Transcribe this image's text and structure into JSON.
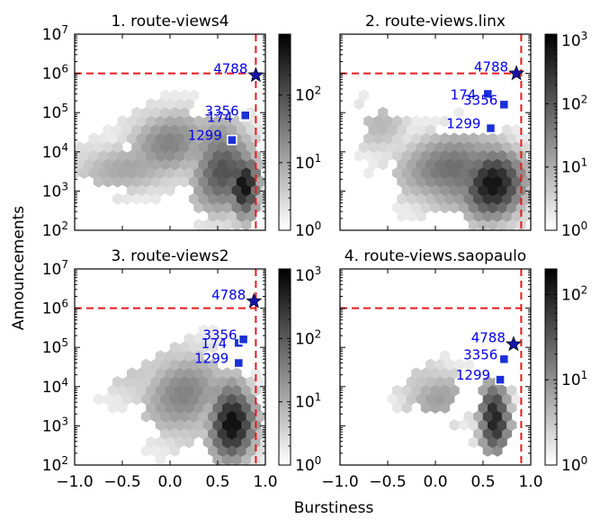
{
  "figure": {
    "ylabel": "Announcements",
    "xlabel": "Burstiness"
  },
  "chart_data": [
    {
      "type": "heatmap",
      "title": "1. route-views4",
      "xlim": [
        -1.0,
        1.0
      ],
      "ylim_log10": [
        2,
        7
      ],
      "x_ticks": [
        "−1.0",
        "−0.5",
        "0.0",
        "0.5",
        "1.0"
      ],
      "y_ticks": [
        "10^2",
        "10^3",
        "10^4",
        "10^5",
        "10^6",
        "10^7"
      ],
      "x_ticks_shown": false,
      "y_ticks_shown": true,
      "colorbar": {
        "max_log10": 2.9,
        "ticks": [
          "10^0",
          "10^1",
          "10^2"
        ]
      },
      "reference_lines": {
        "x": 0.9,
        "y": 1000000
      },
      "points": [
        {
          "label": "4788",
          "marker": "star",
          "x": 0.9,
          "y": 900000
        },
        {
          "label": "174",
          "marker": "square",
          "x": 0.78,
          "y": 80000
        },
        {
          "label": "3356",
          "marker": "square",
          "x": 0.79,
          "y": 85000
        },
        {
          "label": "1299",
          "marker": "square",
          "x": 0.65,
          "y": 20000
        }
      ],
      "hexbin_clusters": [
        {
          "cx": -0.4,
          "cy": 3.6,
          "sx": 0.6,
          "sy": 0.55,
          "peak": 0.9
        },
        {
          "cx": 0.0,
          "cy": 4.2,
          "sx": 0.35,
          "sy": 0.7,
          "peak": 1.3
        },
        {
          "cx": 0.55,
          "cy": 3.6,
          "sx": 0.25,
          "sy": 0.9,
          "peak": 1.9
        },
        {
          "cx": 0.78,
          "cy": 3.1,
          "sx": 0.12,
          "sy": 0.6,
          "peak": 2.7
        }
      ]
    },
    {
      "type": "heatmap",
      "title": "2. route-views.linx",
      "xlim": [
        -1.0,
        1.0
      ],
      "ylim_log10": [
        2,
        7
      ],
      "x_ticks": [
        "−1.0",
        "−0.5",
        "0.0",
        "0.5",
        "1.0"
      ],
      "y_ticks": [
        "10^2",
        "10^3",
        "10^4",
        "10^5",
        "10^6",
        "10^7"
      ],
      "x_ticks_shown": false,
      "y_ticks_shown": false,
      "colorbar": {
        "max_log10": 3.1,
        "ticks": [
          "10^0",
          "10^1",
          "10^2",
          "10^3"
        ]
      },
      "reference_lines": {
        "x": 0.9,
        "y": 1000000
      },
      "points": [
        {
          "label": "4788",
          "marker": "star",
          "x": 0.85,
          "y": 1000000
        },
        {
          "label": "174",
          "marker": "square",
          "x": 0.55,
          "y": 300000
        },
        {
          "label": "3356",
          "marker": "square",
          "x": 0.72,
          "y": 160000
        },
        {
          "label": "1299",
          "marker": "square",
          "x": 0.58,
          "y": 40000
        }
      ],
      "hexbin_clusters": [
        {
          "cx": -0.55,
          "cy": 4.6,
          "sx": 0.25,
          "sy": 0.6,
          "peak": 0.8
        },
        {
          "cx": 0.25,
          "cy": 3.5,
          "sx": 0.45,
          "sy": 0.7,
          "peak": 1.8
        },
        {
          "cx": 0.6,
          "cy": 3.2,
          "sx": 0.25,
          "sy": 0.7,
          "peak": 2.8
        }
      ]
    },
    {
      "type": "heatmap",
      "title": "3. route-views2",
      "xlim": [
        -1.0,
        1.0
      ],
      "ylim_log10": [
        2,
        7
      ],
      "x_ticks": [
        "−1.0",
        "−0.5",
        "0.0",
        "0.5",
        "1.0"
      ],
      "y_ticks": [
        "10^2",
        "10^3",
        "10^4",
        "10^5",
        "10^6",
        "10^7"
      ],
      "x_ticks_shown": true,
      "y_ticks_shown": true,
      "colorbar": {
        "max_log10": 3.1,
        "ticks": [
          "10^0",
          "10^1",
          "10^2",
          "10^3"
        ]
      },
      "reference_lines": {
        "x": 0.9,
        "y": 1000000
      },
      "points": [
        {
          "label": "4788",
          "marker": "star",
          "x": 0.88,
          "y": 1500000
        },
        {
          "label": "174",
          "marker": "square",
          "x": 0.72,
          "y": 130000
        },
        {
          "label": "3356",
          "marker": "square",
          "x": 0.77,
          "y": 160000
        },
        {
          "label": "1299",
          "marker": "square",
          "x": 0.72,
          "y": 40000
        }
      ],
      "hexbin_clusters": [
        {
          "cx": -0.3,
          "cy": 4.2,
          "sx": 0.35,
          "sy": 0.6,
          "peak": 0.7
        },
        {
          "cx": 0.15,
          "cy": 3.8,
          "sx": 0.35,
          "sy": 0.9,
          "peak": 1.4
        },
        {
          "cx": 0.65,
          "cy": 3.1,
          "sx": 0.18,
          "sy": 0.75,
          "peak": 2.9
        }
      ]
    },
    {
      "type": "heatmap",
      "title": "4. route-views.saopaulo",
      "xlim": [
        -1.0,
        1.0
      ],
      "ylim_log10": [
        2,
        7
      ],
      "x_ticks": [
        "−1.0",
        "−0.5",
        "0.0",
        "0.5",
        "1.0"
      ],
      "y_ticks": [
        "10^2",
        "10^3",
        "10^4",
        "10^5",
        "10^6",
        "10^7"
      ],
      "x_ticks_shown": true,
      "y_ticks_shown": false,
      "colorbar": {
        "max_log10": 2.3,
        "ticks": [
          "10^0",
          "10^1",
          "10^2"
        ]
      },
      "reference_lines": {
        "x": 0.9,
        "y": 1000000
      },
      "points": [
        {
          "label": "4788",
          "marker": "star",
          "x": 0.82,
          "y": 120000
        },
        {
          "label": "3356",
          "marker": "square",
          "x": 0.72,
          "y": 50000
        },
        {
          "label": "1299",
          "marker": "square",
          "x": 0.68,
          "y": 15000
        }
      ],
      "hexbin_clusters": [
        {
          "cx": 0.0,
          "cy": 3.8,
          "sx": 0.3,
          "sy": 0.6,
          "peak": 0.8
        },
        {
          "cx": 0.62,
          "cy": 3.2,
          "sx": 0.12,
          "sy": 0.65,
          "peak": 2.1
        }
      ]
    }
  ]
}
